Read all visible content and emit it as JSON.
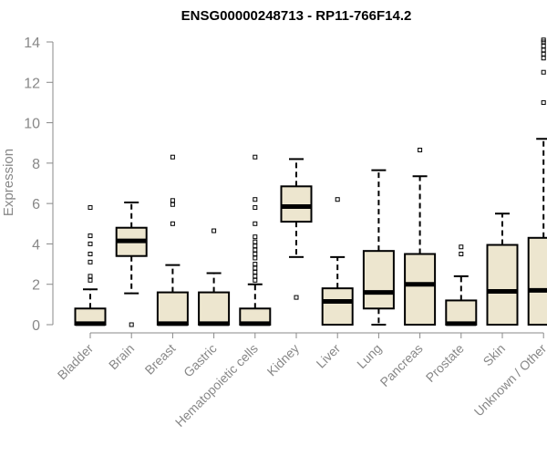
{
  "chart_data": {
    "type": "box",
    "title": "ENSG00000248713 - RP11-766F14.2",
    "xlabel": "",
    "ylabel": "Expression",
    "ylim": [
      0,
      14
    ],
    "yticks": [
      0,
      2,
      4,
      6,
      8,
      10,
      12,
      14
    ],
    "grid": false,
    "box_fill": "#ede6cf",
    "categories": [
      "Bladder",
      "Brain",
      "Breast",
      "Gastric",
      "Hematopoietic cells",
      "Kidney",
      "Liver",
      "Lung",
      "Pancreas",
      "Prostate",
      "Skin",
      "Unknown / Other"
    ],
    "boxes": [
      {
        "label": "Bladder",
        "whisker_low": 0,
        "q1": 0,
        "median": 0.05,
        "q3": 0.8,
        "whisker_high": 1.75,
        "outliers": [
          2.2,
          2.4,
          3.1,
          3.5,
          4.0,
          4.4,
          5.8
        ]
      },
      {
        "label": "Brain",
        "whisker_low": 1.55,
        "q1": 3.4,
        "median": 4.15,
        "q3": 4.8,
        "whisker_high": 6.05,
        "outliers": [
          0.0
        ]
      },
      {
        "label": "Breast",
        "whisker_low": 0,
        "q1": 0,
        "median": 0.05,
        "q3": 1.6,
        "whisker_high": 2.95,
        "outliers": [
          5.0,
          5.95,
          6.15,
          8.3
        ]
      },
      {
        "label": "Gastric",
        "whisker_low": 0,
        "q1": 0,
        "median": 0.05,
        "q3": 1.6,
        "whisker_high": 2.55,
        "outliers": [
          4.65
        ]
      },
      {
        "label": "Hematopoietic cells",
        "whisker_low": 0,
        "q1": 0,
        "median": 0.05,
        "q3": 0.8,
        "whisker_high": 2.0,
        "outliers": [
          2.2,
          2.4,
          2.6,
          2.8,
          3.0,
          3.3,
          3.5,
          3.7,
          3.9,
          4.1,
          4.35,
          5.0,
          5.8,
          6.2,
          8.3
        ]
      },
      {
        "label": "Kidney",
        "whisker_low": 3.35,
        "q1": 5.1,
        "median": 5.85,
        "q3": 6.85,
        "whisker_high": 8.2,
        "outliers": [
          1.35
        ]
      },
      {
        "label": "Liver",
        "whisker_low": 0,
        "q1": 0,
        "median": 1.15,
        "q3": 1.8,
        "whisker_high": 3.35,
        "outliers": [
          6.2
        ]
      },
      {
        "label": "Lung",
        "whisker_low": 0,
        "q1": 0.8,
        "median": 1.6,
        "q3": 3.65,
        "whisker_high": 7.65,
        "outliers": []
      },
      {
        "label": "Pancreas",
        "whisker_low": 0,
        "q1": 0,
        "median": 2.0,
        "q3": 3.5,
        "whisker_high": 7.35,
        "outliers": [
          8.65
        ]
      },
      {
        "label": "Prostate",
        "whisker_low": 0,
        "q1": 0,
        "median": 0.05,
        "q3": 1.2,
        "whisker_high": 2.4,
        "outliers": [
          3.5,
          3.85
        ]
      },
      {
        "label": "Skin",
        "whisker_low": 0,
        "q1": 0,
        "median": 1.65,
        "q3": 3.95,
        "whisker_high": 5.5,
        "outliers": []
      },
      {
        "label": "Unknown / Other",
        "whisker_low": 0,
        "q1": 0,
        "median": 1.7,
        "q3": 4.3,
        "whisker_high": 9.2,
        "outliers": [
          11.0,
          12.5,
          13.2,
          13.4,
          13.6,
          13.8,
          14.0,
          14.1
        ]
      }
    ]
  }
}
